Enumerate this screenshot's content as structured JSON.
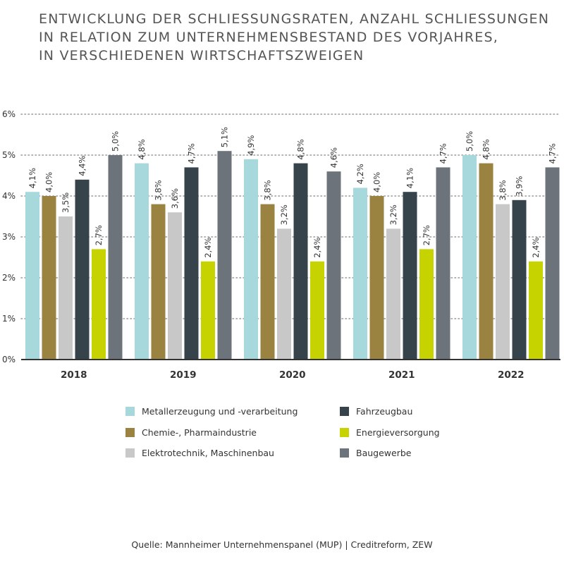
{
  "title_lines": [
    "ENTWICKLUNG DER SCHLIESSUNGSRATEN, ANZAHL SCHLIESSUNGEN",
    "IN RELATION ZUM UNTERNEHMENSBESTAND DES VORJAHRES,",
    "IN VERSCHIEDENEN WIRTSCHAFTSZWEIGEN"
  ],
  "source": "Quelle: Mannheimer Unternehmenspanel (MUP) | Creditreform, ZEW",
  "colors": {
    "Metallerzeugung": "#a6d8dc",
    "Chemie": "#9a8240",
    "Elektrotechnik": "#c8c8c8",
    "Fahrzeugbau": "#37434b",
    "Energieversorgung": "#c7d300",
    "Baugewerbe": "#6c737a",
    "grid": "#9a9a9a",
    "axis": "#333333"
  },
  "chart_data": {
    "type": "bar",
    "title": "ENTWICKLUNG DER SCHLIESSUNGSRATEN, ANZAHL SCHLIESSUNGEN IN RELATION ZUM UNTERNEHMENSBESTAND DES VORJAHRES, IN VERSCHIEDENEN WIRTSCHAFTSZWEIGEN",
    "xlabel": "",
    "ylabel": "",
    "ylim": [
      0,
      6
    ],
    "yticks": [
      0,
      1,
      2,
      3,
      4,
      5,
      6
    ],
    "ytick_labels": [
      "0%",
      "1%",
      "2%",
      "3%",
      "4%",
      "5%",
      "6%"
    ],
    "grid": true,
    "legend_position": "bottom",
    "categories": [
      "2018",
      "2019",
      "2020",
      "2021",
      "2022"
    ],
    "series": [
      {
        "name": "Metallerzeugung und -verarbeitung",
        "color_key": "Metallerzeugung",
        "values": [
          4.1,
          4.8,
          4.9,
          4.2,
          5.0
        ],
        "labels": [
          "4,1%",
          "4,8%",
          "4,9%",
          "4,2%",
          "5,0%"
        ]
      },
      {
        "name": "Chemie-, Pharmaindustrie",
        "color_key": "Chemie",
        "values": [
          4.0,
          3.8,
          3.8,
          4.0,
          4.8
        ],
        "labels": [
          "4,0%",
          "3,8%",
          "3,8%",
          "4,0%",
          "4,8%"
        ]
      },
      {
        "name": "Elektrotechnik, Maschinenbau",
        "color_key": "Elektrotechnik",
        "values": [
          3.5,
          3.6,
          3.2,
          3.2,
          3.8
        ],
        "labels": [
          "3,5%",
          "3,6%",
          "3,2%",
          "3,2%",
          "3,8%"
        ]
      },
      {
        "name": "Fahrzeugbau",
        "color_key": "Fahrzeugbau",
        "values": [
          4.4,
          4.7,
          4.8,
          4.1,
          3.9
        ],
        "labels": [
          "4,4%",
          "4,7%",
          "4,8%",
          "4,1%",
          "3,9%"
        ]
      },
      {
        "name": "Energieversorgung",
        "color_key": "Energieversorgung",
        "values": [
          2.7,
          2.4,
          2.4,
          2.7,
          2.4
        ],
        "labels": [
          "2,7%",
          "2,4%",
          "2,4%",
          "2,7%",
          "2,4%"
        ]
      },
      {
        "name": "Baugewerbe",
        "color_key": "Baugewerbe",
        "values": [
          5.0,
          5.1,
          4.6,
          4.7,
          4.7
        ],
        "labels": [
          "5,0%",
          "5,1%",
          "4,6%",
          "4,7%",
          "4,7%"
        ]
      }
    ],
    "legend_order": [
      0,
      3,
      1,
      4,
      2,
      5
    ]
  }
}
